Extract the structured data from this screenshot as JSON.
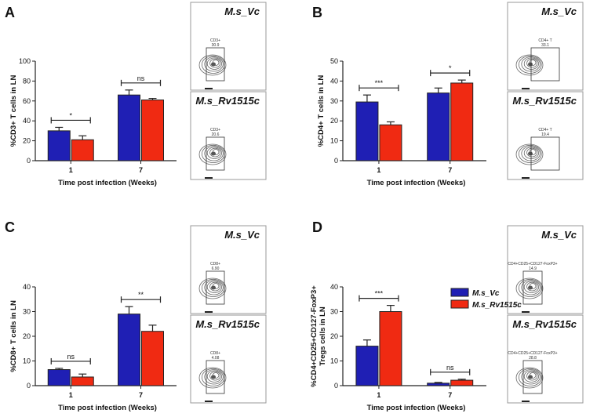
{
  "colors": {
    "vc": "#1f1fb4",
    "rv": "#f02a12"
  },
  "legend": {
    "vc": "M.s_Vc",
    "rv": "M.s_Rv1515c"
  },
  "chart_data": [
    {
      "panel": "A",
      "type": "bar",
      "categories": [
        "1",
        "7"
      ],
      "series": [
        {
          "name": "M.s_Vc",
          "values": [
            30,
            66
          ],
          "errors": [
            3.5,
            5
          ]
        },
        {
          "name": "M.s_Rv1515c",
          "values": [
            21,
            61
          ],
          "errors": [
            4,
            1.5
          ]
        }
      ],
      "ylabel": "%CD3+ T cells in LN",
      "xlabel": "Time post infection (Weeks)",
      "ylim": [
        0,
        100
      ],
      "yticks": [
        0,
        20,
        40,
        60,
        80,
        100
      ],
      "significance": [
        "*",
        "ns"
      ],
      "flow": [
        {
          "title": "M.s_Vc",
          "gate_label": "CD3+",
          "gate_value": "30.9"
        },
        {
          "title": "M.s_Rv1515c",
          "gate_label": "CD3+",
          "gate_value": "20.6"
        }
      ]
    },
    {
      "panel": "B",
      "type": "bar",
      "categories": [
        "1",
        "7"
      ],
      "series": [
        {
          "name": "M.s_Vc",
          "values": [
            29.5,
            34
          ],
          "errors": [
            3.5,
            2.5
          ]
        },
        {
          "name": "M.s_Rv1515c",
          "values": [
            18,
            39
          ],
          "errors": [
            1.5,
            1.5
          ]
        }
      ],
      "ylabel": "%CD4+ T cells in LN",
      "xlabel": "Time post infection (Weeks)",
      "ylim": [
        0,
        50
      ],
      "yticks": [
        0,
        10,
        20,
        30,
        40,
        50
      ],
      "significance": [
        "***",
        "*"
      ],
      "flow": [
        {
          "title": "M.s_Vc",
          "gate_label": "CD4+ T",
          "gate_value": "33.1"
        },
        {
          "title": "M.s_Rv1515c",
          "gate_label": "CD4+ T",
          "gate_value": "19.4"
        }
      ]
    },
    {
      "panel": "C",
      "type": "bar",
      "categories": [
        "1",
        "7"
      ],
      "series": [
        {
          "name": "M.s_Vc",
          "values": [
            6.5,
            29
          ],
          "errors": [
            0.5,
            3
          ]
        },
        {
          "name": "M.s_Rv1515c",
          "values": [
            3.5,
            22
          ],
          "errors": [
            1.2,
            2.5
          ]
        }
      ],
      "ylabel": "%CD8+ T cells in LN",
      "xlabel": "Time post infection (Weeks)",
      "ylim": [
        0,
        40
      ],
      "yticks": [
        0,
        10,
        20,
        30,
        40
      ],
      "significance": [
        "ns",
        "**"
      ],
      "flow": [
        {
          "title": "M.s_Vc",
          "gate_label": "CD8+",
          "gate_value": "6.90"
        },
        {
          "title": "M.s_Rv1515c",
          "gate_label": "CD8+",
          "gate_value": "4.08"
        }
      ]
    },
    {
      "panel": "D",
      "type": "bar",
      "categories": [
        "1",
        "7"
      ],
      "series": [
        {
          "name": "M.s_Vc",
          "values": [
            16,
            1
          ],
          "errors": [
            2.5,
            0.3
          ]
        },
        {
          "name": "M.s_Rv1515c",
          "values": [
            30,
            2.2
          ],
          "errors": [
            2.5,
            0.4
          ]
        }
      ],
      "ylabel": "%CD4+CD25+CD127-FoxP3+ Tregs cells in LN",
      "xlabel": "Time post infection (Weeks)",
      "ylim": [
        0,
        40
      ],
      "yticks": [
        0,
        10,
        20,
        30,
        40
      ],
      "significance": [
        "***",
        "ns"
      ],
      "flow": [
        {
          "title": "M.s_Vc",
          "gate_label": "CD4+CD25+CD127-FoxP3+",
          "gate_value": "14.9"
        },
        {
          "title": "M.s_Rv1515c",
          "gate_label": "CD4+CD25+CD127-FoxP3+",
          "gate_value": "28.8"
        }
      ]
    }
  ]
}
